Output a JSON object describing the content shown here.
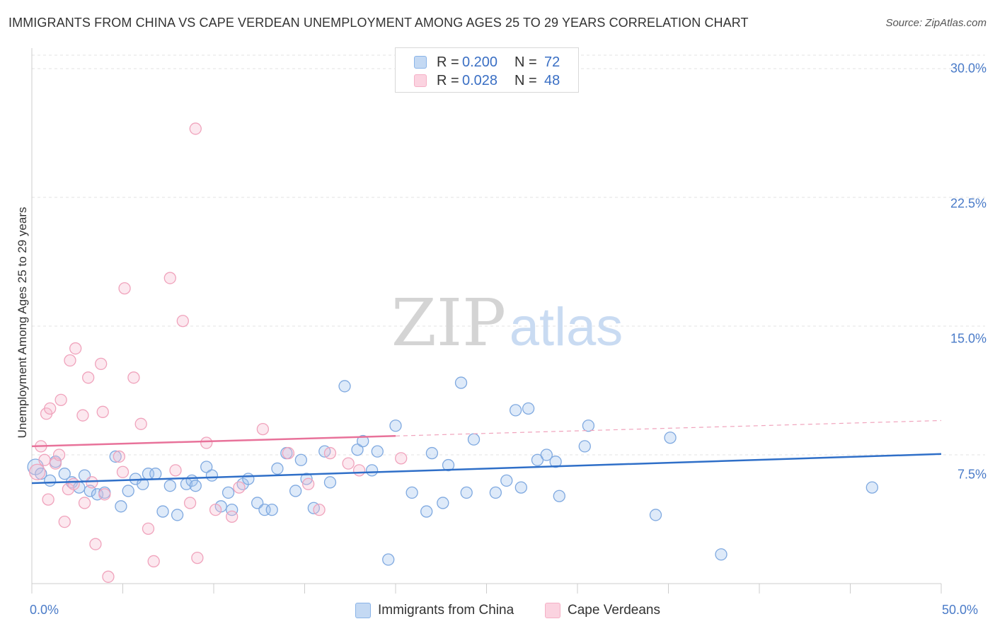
{
  "title": "IMMIGRANTS FROM CHINA VS CAPE VERDEAN UNEMPLOYMENT AMONG AGES 25 TO 29 YEARS CORRELATION CHART",
  "source": "Source: ZipAtlas.com",
  "watermark": {
    "zip": "ZIP",
    "atlas": "atlas"
  },
  "legend": {
    "r_label": "R =",
    "n_label": "N =",
    "rows": [
      {
        "r": "0.200",
        "n": "72"
      },
      {
        "r": "0.028",
        "n": "48"
      }
    ]
  },
  "chart_data": {
    "type": "scatter",
    "title": "IMMIGRANTS FROM CHINA VS CAPE VERDEAN UNEMPLOYMENT AMONG AGES 25 TO 29 YEARS CORRELATION CHART",
    "xlabel": "",
    "ylabel": "Unemployment Among Ages 25 to 29 years",
    "xlim": [
      0,
      50
    ],
    "ylim": [
      0,
      31
    ],
    "x_tick_labels": [
      "0.0%",
      "50.0%"
    ],
    "y_ticks": [
      7.5,
      15.0,
      22.5,
      30.0
    ],
    "y_tick_labels": [
      "7.5%",
      "15.0%",
      "22.5%",
      "30.0%"
    ],
    "grid": "horizontal dashed",
    "legend_placement": "top-center",
    "series": [
      {
        "name": "Immigrants from China",
        "color": "#8ab4e8",
        "line_color": "#2f6fc8",
        "trend": {
          "x": [
            0,
            50
          ],
          "y": [
            5.85,
            7.55
          ]
        },
        "points": [
          [
            0.2,
            6.8
          ],
          [
            0.5,
            6.4
          ],
          [
            1.0,
            6.0
          ],
          [
            1.3,
            7.1
          ],
          [
            1.8,
            6.4
          ],
          [
            2.2,
            5.9
          ],
          [
            2.6,
            5.6
          ],
          [
            2.9,
            6.3
          ],
          [
            3.2,
            5.4
          ],
          [
            3.6,
            5.2
          ],
          [
            4.0,
            5.3
          ],
          [
            4.6,
            7.4
          ],
          [
            4.9,
            4.5
          ],
          [
            5.3,
            5.4
          ],
          [
            5.7,
            6.1
          ],
          [
            6.1,
            5.8
          ],
          [
            6.4,
            6.4
          ],
          [
            6.8,
            6.4
          ],
          [
            7.2,
            4.2
          ],
          [
            7.6,
            5.7
          ],
          [
            8.0,
            4.0
          ],
          [
            8.5,
            5.8
          ],
          [
            8.8,
            6.0
          ],
          [
            9.0,
            5.7
          ],
          [
            9.6,
            6.8
          ],
          [
            9.9,
            6.3
          ],
          [
            10.4,
            4.5
          ],
          [
            10.8,
            5.3
          ],
          [
            11.0,
            4.3
          ],
          [
            11.6,
            5.8
          ],
          [
            11.9,
            6.1
          ],
          [
            12.4,
            4.7
          ],
          [
            12.8,
            4.3
          ],
          [
            13.2,
            4.3
          ],
          [
            13.5,
            6.7
          ],
          [
            14.0,
            7.6
          ],
          [
            14.5,
            5.4
          ],
          [
            14.8,
            7.2
          ],
          [
            15.1,
            6.1
          ],
          [
            15.5,
            4.4
          ],
          [
            16.1,
            7.7
          ],
          [
            16.4,
            5.9
          ],
          [
            17.2,
            11.5
          ],
          [
            17.9,
            7.8
          ],
          [
            18.2,
            8.3
          ],
          [
            18.7,
            6.6
          ],
          [
            19.0,
            7.7
          ],
          [
            19.6,
            1.4
          ],
          [
            20.0,
            9.2
          ],
          [
            20.9,
            5.3
          ],
          [
            21.7,
            4.2
          ],
          [
            22.0,
            7.6
          ],
          [
            22.6,
            4.7
          ],
          [
            22.9,
            6.9
          ],
          [
            23.6,
            11.7
          ],
          [
            23.9,
            5.3
          ],
          [
            24.3,
            8.4
          ],
          [
            25.5,
            5.3
          ],
          [
            26.1,
            6.0
          ],
          [
            26.6,
            10.1
          ],
          [
            26.9,
            5.6
          ],
          [
            27.3,
            10.2
          ],
          [
            27.8,
            7.2
          ],
          [
            28.3,
            7.5
          ],
          [
            28.8,
            7.1
          ],
          [
            29.0,
            5.1
          ],
          [
            30.4,
            8.0
          ],
          [
            30.6,
            9.2
          ],
          [
            34.3,
            4.0
          ],
          [
            35.1,
            8.5
          ],
          [
            37.9,
            1.7
          ],
          [
            46.2,
            5.6
          ]
        ]
      },
      {
        "name": "Cape Verdeans",
        "color": "#f5b0c6",
        "line_color": "#e8729a",
        "trend": {
          "x": [
            0,
            50
          ],
          "y": [
            8.0,
            9.5
          ]
        },
        "points": [
          [
            0.3,
            6.5
          ],
          [
            0.5,
            8.0
          ],
          [
            0.7,
            7.2
          ],
          [
            0.8,
            9.9
          ],
          [
            0.9,
            4.9
          ],
          [
            1.0,
            10.2
          ],
          [
            1.3,
            7.0
          ],
          [
            1.5,
            7.5
          ],
          [
            1.6,
            10.7
          ],
          [
            1.8,
            3.6
          ],
          [
            2.0,
            5.5
          ],
          [
            2.1,
            13.0
          ],
          [
            2.3,
            5.8
          ],
          [
            2.4,
            13.7
          ],
          [
            2.8,
            9.8
          ],
          [
            2.9,
            4.7
          ],
          [
            3.1,
            12.0
          ],
          [
            3.3,
            5.9
          ],
          [
            3.5,
            2.3
          ],
          [
            3.8,
            12.8
          ],
          [
            3.9,
            10.0
          ],
          [
            4.0,
            5.2
          ],
          [
            4.2,
            0.4
          ],
          [
            4.8,
            7.4
          ],
          [
            5.0,
            6.5
          ],
          [
            5.1,
            17.2
          ],
          [
            5.6,
            12.0
          ],
          [
            6.0,
            9.3
          ],
          [
            6.4,
            3.2
          ],
          [
            6.7,
            1.3
          ],
          [
            7.6,
            17.8
          ],
          [
            7.9,
            6.6
          ],
          [
            8.3,
            15.3
          ],
          [
            8.7,
            4.7
          ],
          [
            9.0,
            26.5
          ],
          [
            9.1,
            1.5
          ],
          [
            9.6,
            8.2
          ],
          [
            10.1,
            4.3
          ],
          [
            11.0,
            3.9
          ],
          [
            11.4,
            5.6
          ],
          [
            12.7,
            9.0
          ],
          [
            14.1,
            7.6
          ],
          [
            15.2,
            5.8
          ],
          [
            15.8,
            4.3
          ],
          [
            16.4,
            7.6
          ],
          [
            17.4,
            7.0
          ],
          [
            18.0,
            6.6
          ],
          [
            20.3,
            7.3
          ]
        ]
      }
    ]
  }
}
